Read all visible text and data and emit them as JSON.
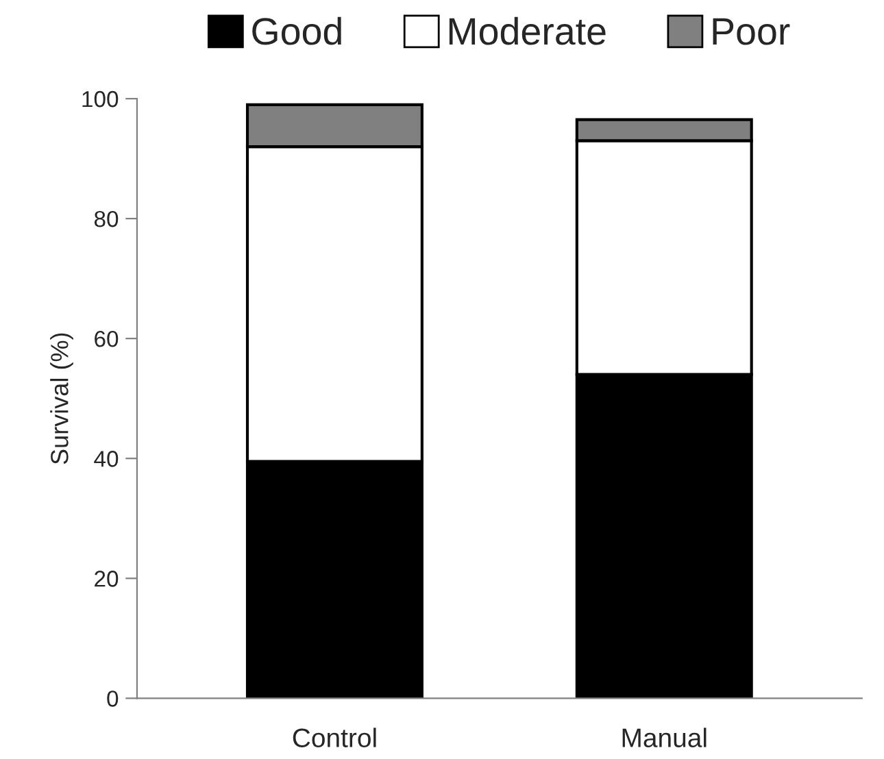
{
  "chart_data": {
    "type": "bar",
    "stacked": true,
    "ylabel": "Survival (%)",
    "categories": [
      "Control",
      "Manual"
    ],
    "series": [
      {
        "name": "Good",
        "color": "#000000",
        "values": [
          39.5,
          54
        ]
      },
      {
        "name": "Moderate",
        "color": "#ffffff",
        "values": [
          52.5,
          39
        ]
      },
      {
        "name": "Poor",
        "color": "#808080",
        "values": [
          7,
          3.5
        ]
      }
    ],
    "ylim": [
      0,
      100
    ],
    "yticks": [
      0,
      20,
      40,
      60,
      80,
      100
    ],
    "grid": false,
    "legend": "top"
  }
}
